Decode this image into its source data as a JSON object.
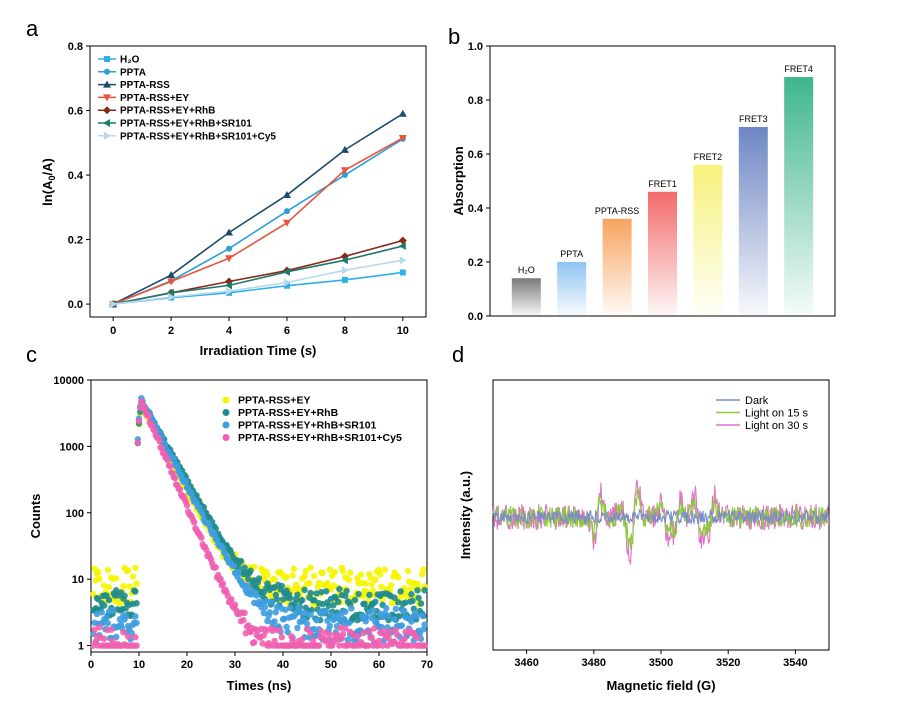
{
  "chart_data": [
    {
      "panel": "a",
      "type": "line",
      "xlabel": "Irradiation Time (s)",
      "ylabel_main": "ln(A",
      "ylabel_sub": "0",
      "ylabel_end": "/A)",
      "xlim": [
        -0.8,
        10.8
      ],
      "ylim": [
        -0.04,
        0.8
      ],
      "x_ticks": [
        0,
        2,
        4,
        6,
        8,
        10
      ],
      "y_ticks": [
        0.0,
        0.2,
        0.4,
        0.6,
        0.8
      ],
      "x": [
        0,
        2,
        4,
        6,
        8,
        10
      ],
      "series": [
        {
          "name": "H₂O",
          "color": "#2fb0e8",
          "marker": "square",
          "values": [
            0.0,
            0.02,
            0.035,
            0.057,
            0.075,
            0.098
          ]
        },
        {
          "name": "PPTA",
          "color": "#2b9fd6",
          "marker": "circle",
          "values": [
            0.0,
            0.072,
            0.172,
            0.288,
            0.4,
            0.512
          ]
        },
        {
          "name": "PPTA-RSS",
          "color": "#1c4c6b",
          "marker": "triangle-up",
          "values": [
            0.0,
            0.09,
            0.222,
            0.338,
            0.478,
            0.59
          ]
        },
        {
          "name": "PPTA-RSS+EY",
          "color": "#e8553c",
          "marker": "triangle-down",
          "values": [
            0.0,
            0.07,
            0.142,
            0.252,
            0.415,
            0.515
          ]
        },
        {
          "name": "PPTA-RSS+EY+RhB",
          "color": "#8b2a1a",
          "marker": "diamond",
          "values": [
            0.0,
            0.035,
            0.07,
            0.104,
            0.148,
            0.197
          ]
        },
        {
          "name": "PPTA-RSS+EY+RhB+SR101",
          "color": "#1f7a6e",
          "marker": "triangle-left",
          "values": [
            0.0,
            0.035,
            0.058,
            0.1,
            0.136,
            0.18
          ]
        },
        {
          "name": "PPTA-RSS+EY+RhB+SR101+Cy5",
          "color": "#b9d8ec",
          "marker": "triangle-right",
          "values": [
            0.0,
            0.022,
            0.04,
            0.067,
            0.105,
            0.136
          ]
        }
      ]
    },
    {
      "panel": "b",
      "type": "bar",
      "ylabel": "Absorption",
      "ylim": [
        0.0,
        1.0
      ],
      "y_ticks": [
        0.0,
        0.2,
        0.4,
        0.6,
        0.8,
        1.0
      ],
      "categories": [
        "H₂O",
        "PPTA",
        "PPTA-RSS",
        "FRET1",
        "FRET2",
        "FRET3",
        "FRET4"
      ],
      "values": [
        0.14,
        0.2,
        0.36,
        0.46,
        0.56,
        0.7,
        0.885
      ],
      "colors": [
        "#7a7a7a",
        "#8fc3f2",
        "#f7a35f",
        "#f26a6a",
        "#f7f27c",
        "#6e86c4",
        "#3fb58f"
      ]
    },
    {
      "panel": "c",
      "type": "scatter",
      "xlabel": "Times (ns)",
      "ylabel": "Counts",
      "xlim": [
        0,
        70
      ],
      "ylim": [
        0.8,
        10000
      ],
      "yscale": "log",
      "x_ticks": [
        0,
        10,
        20,
        30,
        40,
        50,
        60,
        70
      ],
      "y_ticks": [
        1,
        10,
        100,
        1000,
        10000
      ],
      "series": [
        {
          "name": "PPTA-RSS+EY",
          "color": "#f5f500",
          "peak": 4500,
          "tau": 3.1,
          "floor": 8,
          "noise": 0.55
        },
        {
          "name": "PPTA-RSS+EY+RhB",
          "color": "#1f8c8c",
          "peak": 4800,
          "tau": 3.4,
          "floor": 4,
          "noise": 0.45
        },
        {
          "name": "PPTA-RSS+EY+RhB+SR101",
          "color": "#3d9de0",
          "peak": 4900,
          "tau": 3.2,
          "floor": 2,
          "noise": 0.5
        },
        {
          "name": "PPTA-RSS+EY+RhB+SR101+Cy5",
          "color": "#f060b0",
          "peak": 4700,
          "tau": 2.6,
          "floor": 1,
          "noise": 0.5
        }
      ]
    },
    {
      "panel": "d",
      "type": "line",
      "xlabel": "Magnetic field (G)",
      "ylabel": "Intensity (a.u.)",
      "xlim": [
        3450,
        3550
      ],
      "x_ticks": [
        3460,
        3480,
        3500,
        3520,
        3540
      ],
      "peaks": [
        3481,
        3489,
        3492,
        3501,
        3505,
        3511,
        3515
      ],
      "series": [
        {
          "name": "Dark",
          "color": "#7d8cc8",
          "amplitude": 0.0
        },
        {
          "name": "Light on 15 s",
          "color": "#8ccc3c",
          "amplitude": 0.7
        },
        {
          "name": "Light on 30 s",
          "color": "#e070c8",
          "amplitude": 1.0
        }
      ]
    }
  ],
  "panel_labels": {
    "a": "a",
    "b": "b",
    "c": "c",
    "d": "d"
  }
}
